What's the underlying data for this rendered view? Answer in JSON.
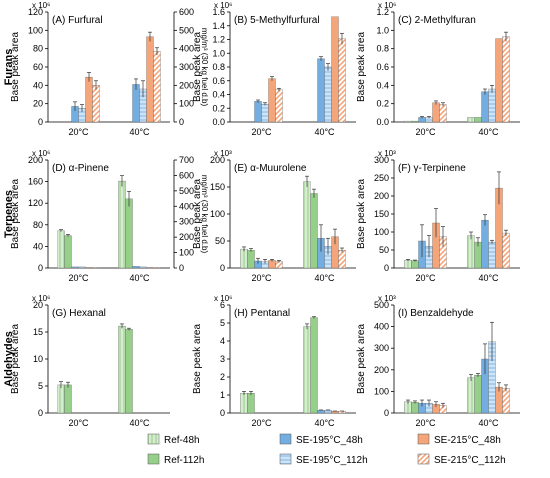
{
  "row_labels": [
    "Furans",
    "Terpenes",
    "Aldehydes"
  ],
  "legend": [
    {
      "name": "Ref-48h",
      "color": "#b5dcaa",
      "pattern": "vlines"
    },
    {
      "name": "Ref-112h",
      "color": "#96cf8a",
      "pattern": "solid"
    },
    {
      "name": "SE-195°C_48h",
      "color": "#74aee0",
      "pattern": "solid"
    },
    {
      "name": "SE-195°C_112h",
      "color": "#a7cdef",
      "pattern": "hlines"
    },
    {
      "name": "SE-215°C_48h",
      "color": "#f4a57a",
      "pattern": "solid"
    },
    {
      "name": "SE-215°C_112h",
      "color": "#f4a57a",
      "pattern": "diag"
    }
  ],
  "chart_data": [
    {
      "type": "bar",
      "title": "(A) Furfural",
      "ylabel": "Base peak area",
      "multiplier": "x 10⁶",
      "ylim": [
        0,
        120
      ],
      "yticks": [
        0,
        20,
        40,
        60,
        80,
        100,
        120
      ],
      "y2label": "mg/m³ (30 kg fuel d.b)",
      "y2lim": [
        0,
        600
      ],
      "y2ticks": [
        0,
        100,
        200,
        300,
        400,
        500,
        600
      ],
      "categories": [
        "20°C",
        "40°C"
      ],
      "series": [
        {
          "name": "Ref-48h",
          "values": [
            0,
            0
          ],
          "err": [
            0,
            0
          ]
        },
        {
          "name": "Ref-112h",
          "values": [
            0,
            0
          ],
          "err": [
            0,
            0
          ]
        },
        {
          "name": "SE-195°C_48h",
          "values": [
            17,
            41
          ],
          "err": [
            5,
            6
          ]
        },
        {
          "name": "SE-195°C_112h",
          "values": [
            15,
            36
          ],
          "err": [
            4,
            9
          ]
        },
        {
          "name": "SE-215°C_48h",
          "values": [
            49,
            93
          ],
          "err": [
            5,
            5
          ]
        },
        {
          "name": "SE-215°C_112h",
          "values": [
            40,
            77
          ],
          "err": [
            5,
            4
          ]
        }
      ]
    },
    {
      "type": "bar",
      "title": "(B) 5-Methylfurfural",
      "ylabel": "Base peak area",
      "multiplier": "x 10⁶",
      "ylim": [
        0,
        1.6
      ],
      "yticks": [
        0,
        0.2,
        0.4,
        0.6,
        0.8,
        1.0,
        1.2,
        1.4,
        1.6
      ],
      "categories": [
        "20°C",
        "40°C"
      ],
      "series": [
        {
          "name": "Ref-48h",
          "values": [
            0,
            0
          ],
          "err": [
            0,
            0
          ]
        },
        {
          "name": "Ref-112h",
          "values": [
            0,
            0
          ],
          "err": [
            0,
            0
          ]
        },
        {
          "name": "SE-195°C_48h",
          "values": [
            0.3,
            0.92
          ],
          "err": [
            0.02,
            0.03
          ]
        },
        {
          "name": "SE-195°C_112h",
          "values": [
            0.26,
            0.8
          ],
          "err": [
            0.02,
            0.05
          ]
        },
        {
          "name": "SE-215°C_48h",
          "values": [
            0.63,
            1.53
          ],
          "err": [
            0.03,
            0
          ]
        },
        {
          "name": "SE-215°C_112h",
          "values": [
            0.47,
            1.21
          ],
          "err": [
            0.02,
            0.08
          ]
        }
      ]
    },
    {
      "type": "bar",
      "title": "(C) 2-Methylfuran",
      "ylabel": "Base peak area",
      "multiplier": "x 10⁶",
      "ylim": [
        0,
        1.2
      ],
      "yticks": [
        0,
        0.2,
        0.4,
        0.6,
        0.8,
        1.0,
        1.2
      ],
      "categories": [
        "20°C",
        "40°C"
      ],
      "series": [
        {
          "name": "Ref-48h",
          "values": [
            0.01,
            0.05
          ],
          "err": [
            0,
            0
          ]
        },
        {
          "name": "Ref-112h",
          "values": [
            0.01,
            0.05
          ],
          "err": [
            0,
            0
          ]
        },
        {
          "name": "SE-195°C_48h",
          "values": [
            0.05,
            0.33
          ],
          "err": [
            0.01,
            0.03
          ]
        },
        {
          "name": "SE-195°C_112h",
          "values": [
            0.05,
            0.36
          ],
          "err": [
            0.01,
            0.04
          ]
        },
        {
          "name": "SE-215°C_48h",
          "values": [
            0.21,
            0.91
          ],
          "err": [
            0.02,
            0
          ]
        },
        {
          "name": "SE-215°C_112h",
          "values": [
            0.19,
            0.93
          ],
          "err": [
            0.02,
            0.05
          ]
        }
      ]
    },
    {
      "type": "bar",
      "title": "(D) α-Pinene",
      "ylabel": "Base peak area",
      "multiplier": "x 10⁶",
      "ylim": [
        0,
        200
      ],
      "yticks": [
        0,
        40,
        80,
        120,
        160,
        200
      ],
      "y2label": "mg/m³ (30 kg fuel d.b)",
      "y2lim": [
        0,
        700
      ],
      "y2ticks": [
        0,
        100,
        200,
        300,
        400,
        500,
        600,
        700
      ],
      "categories": [
        "20°C",
        "40°C"
      ],
      "series": [
        {
          "name": "Ref-48h",
          "values": [
            69,
            161
          ],
          "err": [
            2,
            10
          ]
        },
        {
          "name": "Ref-112h",
          "values": [
            60,
            128
          ],
          "err": [
            2,
            14
          ]
        },
        {
          "name": "SE-195°C_48h",
          "values": [
            2,
            3
          ],
          "err": [
            0,
            0
          ]
        },
        {
          "name": "SE-195°C_112h",
          "values": [
            2,
            2
          ],
          "err": [
            0,
            0
          ]
        },
        {
          "name": "SE-215°C_48h",
          "values": [
            1,
            1
          ],
          "err": [
            0,
            0
          ]
        },
        {
          "name": "SE-215°C_112h",
          "values": [
            1,
            1
          ],
          "err": [
            0,
            0
          ]
        }
      ]
    },
    {
      "type": "bar",
      "title": "(E) α-Muurolene",
      "ylabel": "Base peak area",
      "multiplier": "x 10³",
      "ylim": [
        0,
        200
      ],
      "yticks": [
        0,
        50,
        100,
        150,
        200
      ],
      "categories": [
        "20°C",
        "40°C"
      ],
      "series": [
        {
          "name": "Ref-48h",
          "values": [
            35,
            160
          ],
          "err": [
            4,
            10
          ]
        },
        {
          "name": "Ref-112h",
          "values": [
            33,
            138
          ],
          "err": [
            3,
            8
          ]
        },
        {
          "name": "SE-195°C_48h",
          "values": [
            13,
            55
          ],
          "err": [
            5,
            25
          ]
        },
        {
          "name": "SE-195°C_112h",
          "values": [
            12,
            40
          ],
          "err": [
            4,
            15
          ]
        },
        {
          "name": "SE-215°C_48h",
          "values": [
            14,
            58
          ],
          "err": [
            2,
            14
          ]
        },
        {
          "name": "SE-215°C_112h",
          "values": [
            12,
            33
          ],
          "err": [
            2,
            4
          ]
        }
      ]
    },
    {
      "type": "bar",
      "title": "(F) γ-Terpinene",
      "ylabel": "Base peak area",
      "multiplier": "x 10³",
      "ylim": [
        0,
        300
      ],
      "yticks": [
        0,
        50,
        100,
        150,
        200,
        250,
        300
      ],
      "categories": [
        "20°C",
        "40°C"
      ],
      "series": [
        {
          "name": "Ref-48h",
          "values": [
            22,
            90
          ],
          "err": [
            2,
            10
          ]
        },
        {
          "name": "Ref-112h",
          "values": [
            20,
            72
          ],
          "err": [
            2,
            12
          ]
        },
        {
          "name": "SE-195°C_48h",
          "values": [
            75,
            133
          ],
          "err": [
            45,
            15
          ]
        },
        {
          "name": "SE-195°C_112h",
          "values": [
            60,
            72
          ],
          "err": [
            30,
            5
          ]
        },
        {
          "name": "SE-215°C_48h",
          "values": [
            125,
            222
          ],
          "err": [
            40,
            45
          ]
        },
        {
          "name": "SE-215°C_112h",
          "values": [
            87,
            97
          ],
          "err": [
            28,
            8
          ]
        }
      ]
    },
    {
      "type": "bar",
      "title": "(G) Hexanal",
      "ylabel": "Base peak area",
      "multiplier": "x 10⁶",
      "ylim": [
        0,
        20
      ],
      "yticks": [
        0,
        5,
        10,
        15,
        20
      ],
      "categories": [
        "20°C",
        "40°C"
      ],
      "series": [
        {
          "name": "Ref-48h",
          "values": [
            5.2,
            16.1
          ],
          "err": [
            0.6,
            0.4
          ]
        },
        {
          "name": "Ref-112h",
          "values": [
            5.2,
            15.5
          ],
          "err": [
            0.5,
            0.2
          ]
        },
        {
          "name": "SE-195°C_48h",
          "values": [
            0,
            0
          ],
          "err": [
            0,
            0
          ]
        },
        {
          "name": "SE-195°C_112h",
          "values": [
            0,
            0
          ],
          "err": [
            0,
            0
          ]
        },
        {
          "name": "SE-215°C_48h",
          "values": [
            0,
            0
          ],
          "err": [
            0,
            0
          ]
        },
        {
          "name": "SE-215°C_112h",
          "values": [
            0,
            0
          ],
          "err": [
            0,
            0
          ]
        }
      ]
    },
    {
      "type": "bar",
      "title": "(H) Pentanal",
      "ylabel": "Base peak area",
      "multiplier": "x 10⁶",
      "ylim": [
        0,
        6
      ],
      "yticks": [
        0,
        1,
        2,
        3,
        4,
        5,
        6
      ],
      "categories": [
        "20°C",
        "40°C"
      ],
      "series": [
        {
          "name": "Ref-48h",
          "values": [
            1.1,
            4.8
          ],
          "err": [
            0.1,
            0.15
          ]
        },
        {
          "name": "Ref-112h",
          "values": [
            1.1,
            5.3
          ],
          "err": [
            0.1,
            0.05
          ]
        },
        {
          "name": "SE-195°C_48h",
          "values": [
            0,
            0.15
          ],
          "err": [
            0,
            0.02
          ]
        },
        {
          "name": "SE-195°C_112h",
          "values": [
            0,
            0.15
          ],
          "err": [
            0,
            0.02
          ]
        },
        {
          "name": "SE-215°C_48h",
          "values": [
            0,
            0.1
          ],
          "err": [
            0,
            0.01
          ]
        },
        {
          "name": "SE-215°C_112h",
          "values": [
            0,
            0.1
          ],
          "err": [
            0,
            0.01
          ]
        }
      ]
    },
    {
      "type": "bar",
      "title": "(I) Benzaldehyde",
      "ylabel": "Base peak area",
      "multiplier": "x 10³",
      "ylim": [
        0,
        500
      ],
      "yticks": [
        0,
        100,
        200,
        300,
        400,
        500
      ],
      "categories": [
        "20°C",
        "40°C"
      ],
      "series": [
        {
          "name": "Ref-48h",
          "values": [
            52,
            163
          ],
          "err": [
            8,
            15
          ]
        },
        {
          "name": "Ref-112h",
          "values": [
            50,
            175
          ],
          "err": [
            6,
            8
          ]
        },
        {
          "name": "SE-195°C_48h",
          "values": [
            45,
            250
          ],
          "err": [
            15,
            70
          ]
        },
        {
          "name": "SE-195°C_112h",
          "values": [
            45,
            330
          ],
          "err": [
            15,
            90
          ]
        },
        {
          "name": "SE-215°C_48h",
          "values": [
            40,
            120
          ],
          "err": [
            12,
            20
          ]
        },
        {
          "name": "SE-215°C_112h",
          "values": [
            35,
            115
          ],
          "err": [
            10,
            15
          ]
        }
      ]
    }
  ]
}
